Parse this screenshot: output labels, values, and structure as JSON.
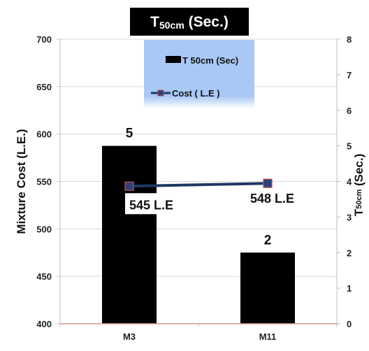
{
  "chart_data": {
    "type": "bar",
    "title": {
      "main": "T",
      "sub": "50cm",
      "rest": " (Sec.)"
    },
    "categories": [
      "M3",
      "M11"
    ],
    "series": [
      {
        "name": "T 50cm (Sec)",
        "kind": "bar",
        "axis": "right",
        "values": [
          5,
          2
        ],
        "color": "#000000"
      },
      {
        "name": "Cost ( L.E )",
        "kind": "line",
        "axis": "left",
        "values": [
          545,
          548
        ],
        "color": "#1f3864",
        "marker_color": "#2f3f7a",
        "marker_edge": "#c0504d"
      }
    ],
    "bar_labels": [
      "5",
      "2"
    ],
    "cost_labels": [
      "545 L.E",
      "548 L.E"
    ],
    "ylabel_left": "Mixture Cost  (L.E.)",
    "ylabel_right": {
      "main": "T",
      "sub": "50cm",
      "rest": " (Sec.)"
    },
    "ylim_left": [
      400,
      700
    ],
    "yticks_left": [
      "400",
      "450",
      "500",
      "550",
      "600",
      "650",
      "700"
    ],
    "ylim_right": [
      0,
      8
    ],
    "yticks_right": [
      "0",
      "1",
      "2",
      "3",
      "4",
      "5",
      "6",
      "7",
      "8"
    ],
    "grid": true,
    "legend_position": "top-center",
    "colors": {
      "legend_bg_top": "#a9c8f5",
      "legend_bg_bottom": "#ffffff",
      "title_bg": "#000000",
      "grid": "#d9d9d9",
      "axis": "#bfbfbf",
      "baseline": "#d99594"
    }
  }
}
